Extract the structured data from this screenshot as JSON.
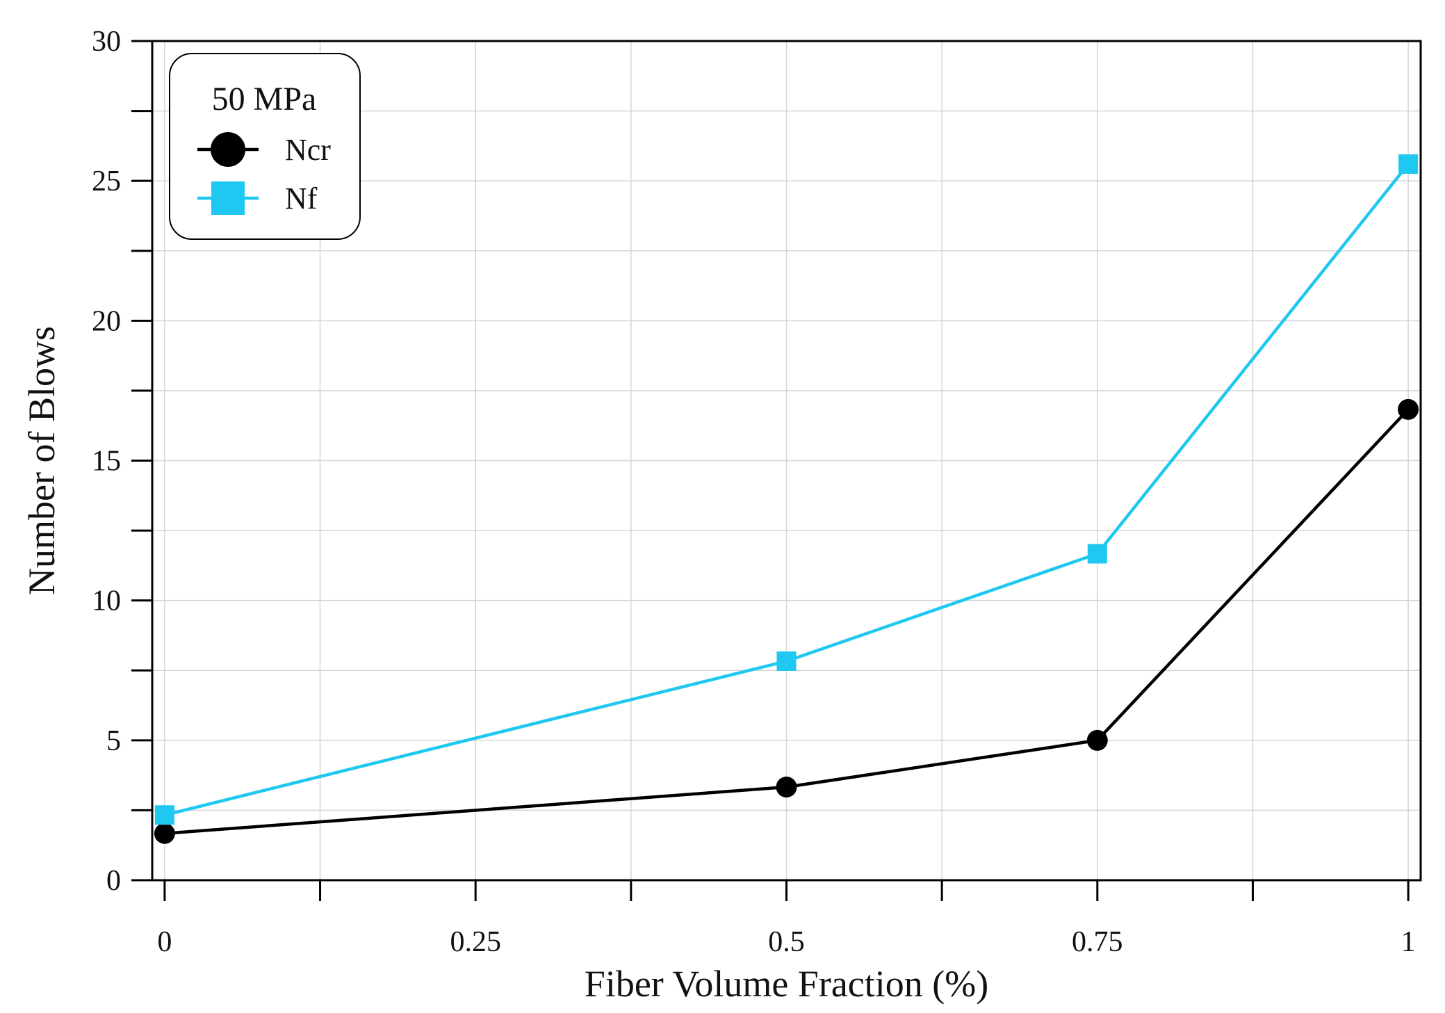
{
  "chart_data": {
    "type": "line",
    "title": "",
    "xlabel": "Fiber Volume Fraction (%)",
    "ylabel": "Number of Blows",
    "xlim": [
      -0.01,
      1.01
    ],
    "ylim": [
      0,
      30
    ],
    "x_ticks": [
      0,
      0.125,
      0.25,
      0.375,
      0.5,
      0.625,
      0.75,
      0.875,
      1
    ],
    "x_tick_labels": [
      {
        "value": 0,
        "label": "0"
      },
      {
        "value": 0.25,
        "label": "0.25"
      },
      {
        "value": 0.5,
        "label": "0.5"
      },
      {
        "value": 0.75,
        "label": "0.75"
      },
      {
        "value": 1,
        "label": "1"
      }
    ],
    "y_ticks": [
      0,
      2.5,
      5,
      7.5,
      10,
      12.5,
      15,
      17.5,
      20,
      22.5,
      25,
      27.5,
      30
    ],
    "y_tick_labels": [
      {
        "value": 0,
        "label": "0"
      },
      {
        "value": 5,
        "label": "5"
      },
      {
        "value": 10,
        "label": "10"
      },
      {
        "value": 15,
        "label": "15"
      },
      {
        "value": 20,
        "label": "20"
      },
      {
        "value": 25,
        "label": "25"
      },
      {
        "value": 30,
        "label": "30"
      }
    ],
    "grid": true,
    "legend": {
      "title": "50 MPa",
      "placement": "top-left"
    },
    "series": [
      {
        "name": "Ncr",
        "color": "#000000",
        "marker": "circle",
        "x": [
          0,
          0.5,
          0.75,
          1
        ],
        "values": [
          1.67,
          3.33,
          5.0,
          16.83
        ]
      },
      {
        "name": "Nf",
        "color": "#1EC8F0",
        "marker": "square",
        "x": [
          0,
          0.5,
          0.75,
          1
        ],
        "values": [
          2.33,
          7.83,
          11.67,
          25.6
        ]
      }
    ]
  }
}
